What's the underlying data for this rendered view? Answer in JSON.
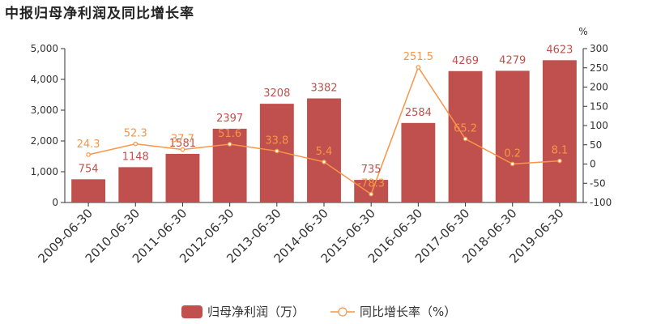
{
  "chart_data": {
    "type": "bar",
    "title": "中报归母净利润及同比增长率",
    "categories": [
      "2009-06-30",
      "2010-06-30",
      "2011-06-30",
      "2012-06-30",
      "2013-06-30",
      "2014-06-30",
      "2015-06-30",
      "2016-06-30",
      "2017-06-30",
      "2018-06-30",
      "2019-06-30"
    ],
    "series": [
      {
        "name": "归母净利润（万）",
        "type": "bar",
        "axis": "left",
        "values": [
          754,
          1148,
          1581,
          2397,
          3208,
          3382,
          735,
          2584,
          4269,
          4279,
          4623
        ],
        "labels": [
          "754",
          "1148",
          "1581",
          "2397",
          "3208",
          "3382",
          "735",
          "2584",
          "4269",
          "4279",
          "4623"
        ]
      },
      {
        "name": "同比增长率（%）",
        "type": "line",
        "axis": "right",
        "values": [
          24.3,
          52.3,
          37.7,
          51.6,
          33.8,
          5.4,
          -78.3,
          251.5,
          65.2,
          0.2,
          8.1
        ],
        "labels": [
          "24.3",
          "52.3",
          "37.7",
          "51.6",
          "33.8",
          "5.4",
          "-78.3",
          "251.5",
          "65.2",
          "0.2",
          "8.1"
        ]
      }
    ],
    "ylim_left": [
      0,
      5000
    ],
    "yticks_left": [
      "0",
      "1,000",
      "2,000",
      "3,000",
      "4,000",
      "5,000"
    ],
    "ylim_right": [
      -100,
      300
    ],
    "yticks_right": [
      "-100",
      "-50",
      "0",
      "50",
      "100",
      "150",
      "200",
      "250",
      "300"
    ],
    "ylabel_right": "%",
    "legend_position": "bottom-center",
    "colors": {
      "bar": "#c0504d",
      "line": "#f79646"
    }
  }
}
